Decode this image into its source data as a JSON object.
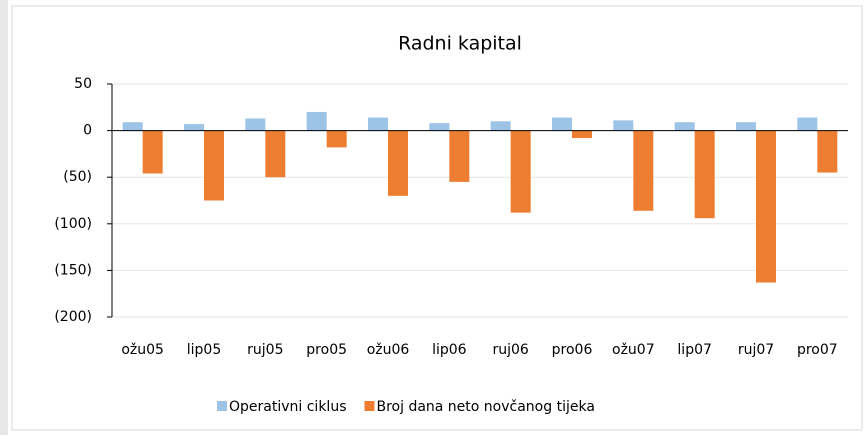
{
  "chart_data": {
    "type": "bar",
    "title": "Radni kapital",
    "categories": [
      "ožu05",
      "lip05",
      "ruj05",
      "pro05",
      "ožu06",
      "lip06",
      "ruj06",
      "pro06",
      "ožu07",
      "lip07",
      "ruj07",
      "pro07"
    ],
    "series": [
      {
        "name": "Operativni ciklus",
        "color": "#9dc3e6",
        "values": [
          9,
          7,
          13,
          20,
          14,
          8,
          10,
          14,
          11,
          9,
          9,
          14
        ]
      },
      {
        "name": "Broj dana neto novčanog tijeka",
        "color": "#ed7d31",
        "values": [
          -46,
          -75,
          -50,
          -18,
          -70,
          -55,
          -88,
          -8,
          -86,
          -94,
          -163,
          -45
        ]
      }
    ],
    "ylim": [
      -200,
      50
    ],
    "yticks": [
      {
        "value": -200,
        "label": "(200)"
      },
      {
        "value": -150,
        "label": "(150)"
      },
      {
        "value": -100,
        "label": "(100)"
      },
      {
        "value": -50,
        "label": "(50)"
      },
      0,
      50
    ],
    "grid": true
  }
}
